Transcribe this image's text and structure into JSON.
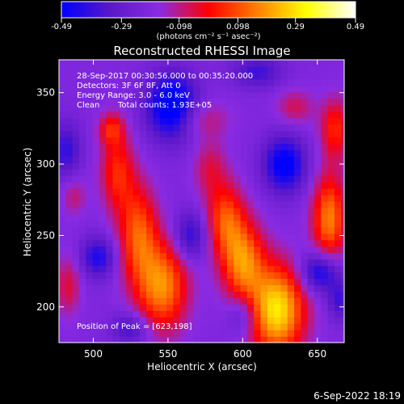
{
  "colorbar": {
    "min": -0.49,
    "max": 0.49,
    "tick_labels": [
      "-0.49",
      "-0.29",
      "-0.098",
      "0.098",
      "0.29",
      "0.49"
    ],
    "tick_values": [
      -0.49,
      -0.29,
      -0.098,
      0.098,
      0.29,
      0.49
    ],
    "unit_label": "(photons cm⁻² s⁻¹ asec⁻²)",
    "colors": [
      "#0000ff",
      "#5a18c8",
      "#8a2be2",
      "#ff0000",
      "#ff8000",
      "#ffff00",
      "#ffffff"
    ]
  },
  "chart_data": {
    "type": "heatmap",
    "title": "Reconstructed RHESSI Image",
    "xlabel": "Heliocentric X (arcsec)",
    "ylabel": "Heliocentric Y (arcsec)",
    "xlim": [
      477,
      668
    ],
    "ylim": [
      175,
      373
    ],
    "xticks": [
      500,
      550,
      600,
      650
    ],
    "yticks": [
      200,
      250,
      300,
      350
    ],
    "annotations": {
      "time_range": "28-Sep-2017 00:30:56.000 to 00:35:20.000",
      "detectors": "Detectors: 3F 6F 8F, Att 0",
      "energy_range": "Energy Range: 3.0 - 6.0 keV",
      "clean_label": "Clean",
      "total_counts": "Total counts: 1.93E+05",
      "peak": "Position of Peak = [623,198]"
    },
    "peak_position": [
      623,
      198
    ],
    "sources": [
      {
        "x": 623,
        "y": 198,
        "amp": 0.5,
        "sx": 13,
        "sy": 22
      },
      {
        "x": 600,
        "y": 232,
        "amp": 0.36,
        "sx": 10,
        "sy": 20
      },
      {
        "x": 588,
        "y": 262,
        "amp": 0.28,
        "sx": 9,
        "sy": 18
      },
      {
        "x": 546,
        "y": 215,
        "amp": 0.38,
        "sx": 12,
        "sy": 22
      },
      {
        "x": 530,
        "y": 252,
        "amp": 0.3,
        "sx": 9,
        "sy": 24
      },
      {
        "x": 516,
        "y": 295,
        "amp": 0.24,
        "sx": 8,
        "sy": 20
      },
      {
        "x": 512,
        "y": 325,
        "amp": 0.2,
        "sx": 6,
        "sy": 8
      },
      {
        "x": 570,
        "y": 332,
        "amp": 0.15,
        "sx": 14,
        "sy": 10
      },
      {
        "x": 578,
        "y": 298,
        "amp": 0.14,
        "sx": 8,
        "sy": 14
      },
      {
        "x": 658,
        "y": 262,
        "amp": 0.36,
        "sx": 8,
        "sy": 22
      },
      {
        "x": 662,
        "y": 325,
        "amp": 0.24,
        "sx": 7,
        "sy": 15
      },
      {
        "x": 635,
        "y": 340,
        "amp": 0.14,
        "sx": 9,
        "sy": 9
      },
      {
        "x": 483,
        "y": 215,
        "amp": 0.16,
        "sx": 6,
        "sy": 15
      },
      {
        "x": 487,
        "y": 278,
        "amp": 0.12,
        "sx": 6,
        "sy": 10
      }
    ],
    "sinks": [
      {
        "x": 553,
        "y": 340,
        "amp": 0.4,
        "sx": 12,
        "sy": 16
      },
      {
        "x": 628,
        "y": 300,
        "amp": 0.32,
        "sx": 10,
        "sy": 14
      },
      {
        "x": 652,
        "y": 225,
        "amp": 0.3,
        "sx": 9,
        "sy": 10
      },
      {
        "x": 503,
        "y": 235,
        "amp": 0.24,
        "sx": 8,
        "sy": 10
      },
      {
        "x": 565,
        "y": 250,
        "amp": 0.22,
        "sx": 8,
        "sy": 12
      },
      {
        "x": 482,
        "y": 310,
        "amp": 0.2,
        "sx": 7,
        "sy": 14
      },
      {
        "x": 600,
        "y": 195,
        "amp": 0.16,
        "sx": 7,
        "sy": 10
      },
      {
        "x": 525,
        "y": 185,
        "amp": 0.18,
        "sx": 9,
        "sy": 8
      },
      {
        "x": 610,
        "y": 365,
        "amp": 0.18,
        "sx": 12,
        "sy": 8
      },
      {
        "x": 665,
        "y": 205,
        "amp": 0.18,
        "sx": 6,
        "sy": 10
      }
    ],
    "background": -0.2,
    "colorscale": "blue-purple-red-yellow-white"
  },
  "footer": {
    "timestamp": "6-Sep-2022 18:19"
  }
}
